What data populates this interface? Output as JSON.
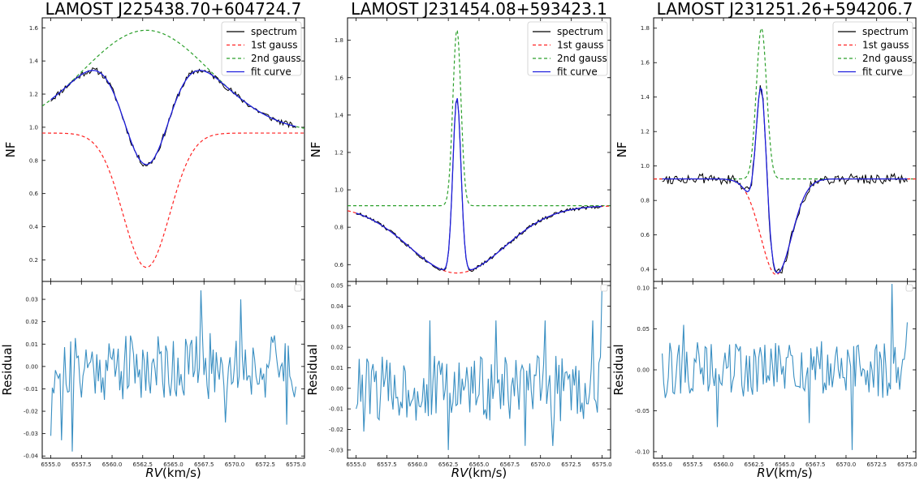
{
  "figure": {
    "xlabel_italic": "RV",
    "xlabel_unit": "(km/s)",
    "ylabel_top": "NF",
    "ylabel_bottom": "Residual",
    "legend": [
      "spectrum",
      "1st gauss",
      "2nd gauss",
      "fit curve"
    ],
    "colors": {
      "spectrum": "#000000",
      "gauss1": "#ff2222",
      "gauss2": "#2ca02c",
      "fit": "#1f1fdd",
      "residual": "#3a8fc2"
    }
  },
  "chart_data": [
    {
      "type": "line",
      "title": "LAMOST J225438.70+604724.7",
      "xlim": [
        6554.3,
        6575.7
      ],
      "xticks": [
        "6555.0",
        "6557.5",
        "6560.0",
        "6562.5",
        "6565.0",
        "6567.5",
        "6570.0",
        "6572.5",
        "6575.0"
      ],
      "top": {
        "ylim": [
          0.07,
          1.66
        ],
        "yticks": [
          0.2,
          0.4,
          0.6,
          0.8,
          1.0,
          1.2,
          1.4,
          1.6
        ],
        "ytick_labels": [
          "0.2",
          "0.4",
          "0.6",
          "0.8",
          "1.0",
          "1.2",
          "1.4",
          "1.6"
        ],
        "gauss1": {
          "amp": -0.81,
          "mu": 6562.8,
          "sigma": 1.9,
          "c": 0.965
        },
        "gauss2": {
          "amp": 0.62,
          "mu": 6562.8,
          "sigma": 5.2,
          "c": 0.965
        },
        "spectrum_noise": 0.018,
        "seed": 11
      },
      "bottom": {
        "ylim": [
          -0.041,
          0.038
        ],
        "yticks": [
          -0.04,
          -0.03,
          -0.02,
          -0.01,
          0.0,
          0.01,
          0.02,
          0.03
        ],
        "ytick_labels": [
          "-0.04",
          "-0.03",
          "-0.02",
          "-0.01",
          "0.00",
          "0.01",
          "0.02",
          "0.03"
        ],
        "residual_amp": 0.015,
        "seed": 21,
        "anchors": [
          [
            6555.0,
            -0.031
          ],
          [
            6555.3,
            -0.012
          ],
          [
            6555.9,
            -0.033
          ],
          [
            6556.3,
            -0.008
          ],
          [
            6556.8,
            -0.038
          ],
          [
            6567.2,
            0.034
          ],
          [
            6569.2,
            -0.025
          ],
          [
            6570.5,
            0.03
          ],
          [
            6574.2,
            -0.026
          ],
          [
            6575.0,
            -0.009
          ]
        ]
      }
    },
    {
      "type": "line",
      "title": "LAMOST J231454.08+593423.1",
      "xlim": [
        6554.3,
        6575.7
      ],
      "xticks": [
        "6555.0",
        "6557.5",
        "6560.0",
        "6562.5",
        "6565.0",
        "6567.5",
        "6570.0",
        "6572.5",
        "6575.0"
      ],
      "top": {
        "ylim": [
          0.51,
          1.92
        ],
        "yticks": [
          0.6,
          0.8,
          1.0,
          1.2,
          1.4,
          1.6,
          1.8
        ],
        "ytick_labels": [
          "0.6",
          "0.8",
          "1.0",
          "1.2",
          "1.4",
          "1.6",
          "1.8"
        ],
        "gauss1": {
          "amp": -0.36,
          "mu": 6563.2,
          "sigma": 3.9,
          "c": 0.915
        },
        "gauss2": {
          "amp": 0.94,
          "mu": 6563.2,
          "sigma": 0.33,
          "c": 0.915
        },
        "spectrum_noise": 0.01,
        "seed": 33
      },
      "bottom": {
        "ylim": [
          -0.034,
          0.052
        ],
        "yticks": [
          -0.03,
          -0.02,
          -0.01,
          0.0,
          0.01,
          0.02,
          0.03,
          0.04,
          0.05
        ],
        "ytick_labels": [
          "-0.03",
          "-0.02",
          "-0.01",
          "0.00",
          "0.01",
          "0.02",
          "0.03",
          "0.04",
          "0.05"
        ],
        "residual_amp": 0.016,
        "seed": 44,
        "anchors": [
          [
            6555.0,
            -0.01
          ],
          [
            6555.6,
            -0.021
          ],
          [
            6561.0,
            0.033
          ],
          [
            6562.5,
            -0.03
          ],
          [
            6566.4,
            0.033
          ],
          [
            6568.7,
            -0.028
          ],
          [
            6570.4,
            0.033
          ],
          [
            6571.0,
            -0.028
          ],
          [
            6574.3,
            0.033
          ],
          [
            6575.0,
            0.049
          ]
        ]
      }
    },
    {
      "type": "line",
      "title": "LAMOST J231251.26+594206.7",
      "xlim": [
        6554.3,
        6575.7
      ],
      "xticks": [
        "6555.0",
        "6557.5",
        "6560.0",
        "6562.5",
        "6565.0",
        "6567.5",
        "6570.0",
        "6572.5",
        "6575.0"
      ],
      "top": {
        "ylim": [
          0.33,
          1.86
        ],
        "yticks": [
          0.4,
          0.6,
          0.8,
          1.0,
          1.2,
          1.4,
          1.6,
          1.8
        ],
        "ytick_labels": [
          "0.4",
          "0.6",
          "0.8",
          "1.0",
          "1.2",
          "1.4",
          "1.6",
          "1.8"
        ],
        "gauss1": {
          "amp": -0.555,
          "mu": 6564.3,
          "sigma": 1.25,
          "c": 0.925
        },
        "gauss2": {
          "amp": 0.875,
          "mu": 6563.1,
          "sigma": 0.42,
          "c": 0.925
        },
        "spectrum_noise": 0.03,
        "seed": 55
      },
      "bottom": {
        "ylim": [
          -0.108,
          0.108
        ],
        "yticks": [
          -0.1,
          -0.05,
          0.0,
          0.05,
          0.1
        ],
        "ytick_labels": [
          "-0.10",
          "-0.05",
          "0.00",
          "0.05",
          "0.10"
        ],
        "residual_amp": 0.035,
        "seed": 66,
        "anchors": [
          [
            6555.0,
            0.02
          ],
          [
            6556.7,
            0.055
          ],
          [
            6559.5,
            -0.07
          ],
          [
            6564.5,
            0.03
          ],
          [
            6567.0,
            -0.065
          ],
          [
            6570.5,
            -0.098
          ],
          [
            6573.7,
            0.105
          ],
          [
            6575.0,
            0.058
          ]
        ]
      }
    }
  ]
}
